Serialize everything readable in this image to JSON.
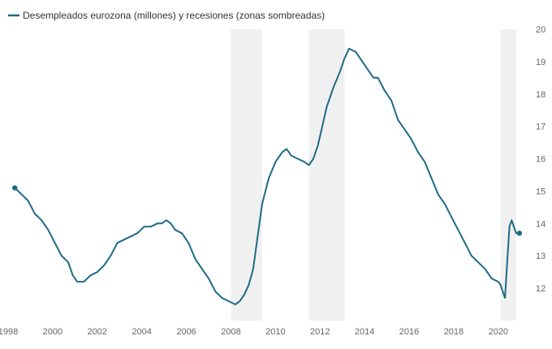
{
  "chart_data": {
    "type": "line",
    "legend": {
      "placement": "top-left",
      "entries": [
        "Desempleados eurozona (millones) y recesiones (zonas sombreadas)"
      ]
    },
    "line_color": "#1d6a85",
    "shade_color": "#f0f0f0",
    "xlim": [
      1998,
      2021.5
    ],
    "ylim": [
      11,
      20
    ],
    "x_ticks": [
      1998,
      2000,
      2002,
      2004,
      2006,
      2008,
      2010,
      2012,
      2014,
      2016,
      2018,
      2020
    ],
    "y_ticks": [
      12,
      13,
      14,
      15,
      16,
      17,
      18,
      19,
      20
    ],
    "y_axis_side": "right",
    "recessions": [
      [
        2008.0,
        2009.4
      ],
      [
        2011.5,
        2013.1
      ],
      [
        2020.1,
        2020.8
      ]
    ],
    "series": [
      {
        "name": "Desempleados eurozona (millones)",
        "x": [
          1998.3,
          1998.6,
          1998.9,
          1999.2,
          1999.5,
          1999.8,
          2000.1,
          2000.4,
          2000.7,
          2000.9,
          2001.1,
          2001.4,
          2001.7,
          2002.0,
          2002.3,
          2002.6,
          2002.9,
          2003.2,
          2003.5,
          2003.8,
          2004.1,
          2004.4,
          2004.7,
          2004.9,
          2005.1,
          2005.3,
          2005.5,
          2005.8,
          2006.1,
          2006.4,
          2006.7,
          2007.0,
          2007.3,
          2007.6,
          2007.9,
          2008.2,
          2008.4,
          2008.6,
          2008.8,
          2009.0,
          2009.2,
          2009.4,
          2009.7,
          2010.0,
          2010.3,
          2010.5,
          2010.7,
          2011.0,
          2011.3,
          2011.5,
          2011.7,
          2011.9,
          2012.1,
          2012.3,
          2012.6,
          2012.9,
          2013.1,
          2013.3,
          2013.6,
          2013.9,
          2014.2,
          2014.4,
          2014.6,
          2014.9,
          2015.2,
          2015.5,
          2015.8,
          2016.1,
          2016.4,
          2016.7,
          2017.0,
          2017.3,
          2017.6,
          2017.9,
          2018.2,
          2018.5,
          2018.8,
          2019.1,
          2019.4,
          2019.7,
          2020.0,
          2020.1,
          2020.2,
          2020.3,
          2020.4,
          2020.5,
          2020.6,
          2020.7,
          2020.8,
          2020.95
        ],
        "values": [
          15.1,
          14.9,
          14.7,
          14.3,
          14.1,
          13.8,
          13.4,
          13.0,
          12.8,
          12.4,
          12.2,
          12.2,
          12.4,
          12.5,
          12.7,
          13.0,
          13.4,
          13.5,
          13.6,
          13.7,
          13.9,
          13.9,
          14.0,
          14.0,
          14.1,
          14.0,
          13.8,
          13.7,
          13.4,
          12.9,
          12.6,
          12.3,
          11.9,
          11.7,
          11.6,
          11.5,
          11.6,
          11.8,
          12.1,
          12.6,
          13.6,
          14.6,
          15.4,
          15.9,
          16.2,
          16.3,
          16.1,
          16.0,
          15.9,
          15.8,
          16.0,
          16.4,
          17.0,
          17.6,
          18.2,
          18.7,
          19.1,
          19.4,
          19.3,
          19.0,
          18.7,
          18.5,
          18.5,
          18.1,
          17.8,
          17.2,
          16.9,
          16.6,
          16.2,
          15.9,
          15.4,
          14.9,
          14.6,
          14.2,
          13.8,
          13.4,
          13.0,
          12.8,
          12.6,
          12.3,
          12.2,
          12.1,
          11.9,
          11.7,
          12.8,
          13.9,
          14.1,
          13.9,
          13.7,
          13.7
        ]
      }
    ]
  }
}
